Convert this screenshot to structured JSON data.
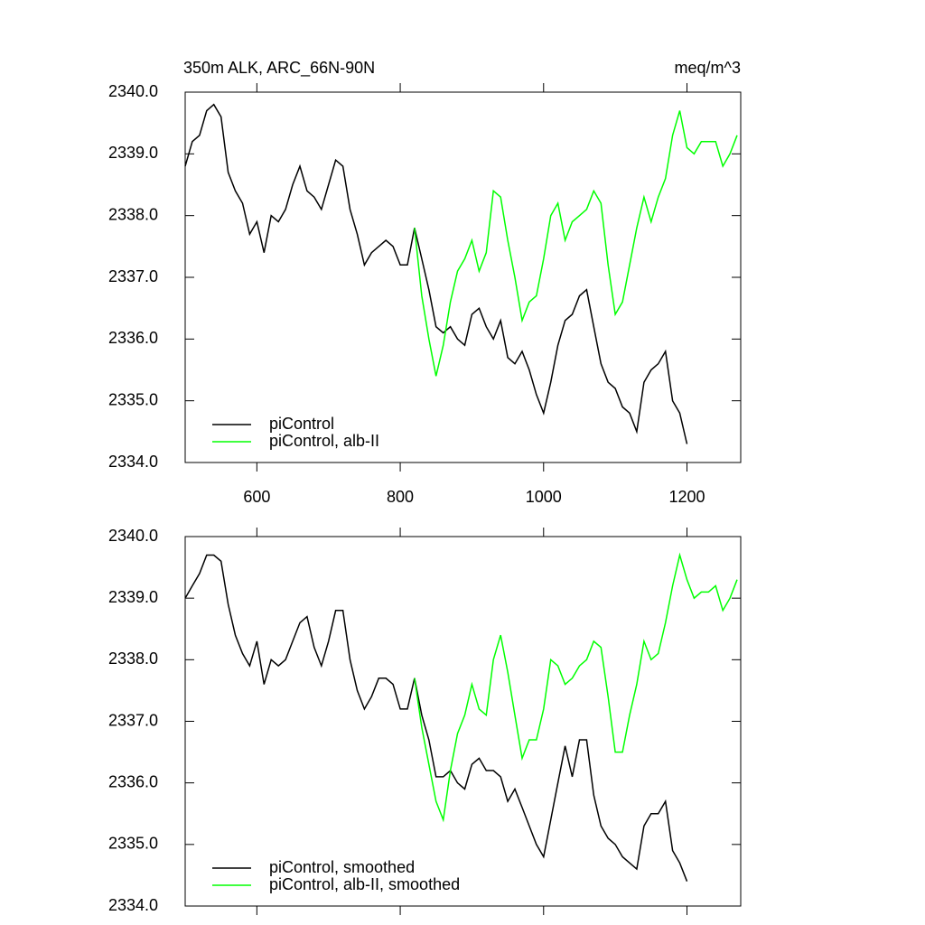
{
  "chart_data": [
    {
      "type": "line",
      "title": "350m ALK, ARC_66N-90N",
      "units": "meq/m^3",
      "x": [
        500,
        510,
        520,
        530,
        540,
        550,
        560,
        570,
        580,
        590,
        600,
        610,
        620,
        630,
        640,
        650,
        660,
        670,
        680,
        690,
        700,
        710,
        720,
        730,
        740,
        750,
        760,
        770,
        780,
        790,
        800,
        810,
        820,
        830,
        840,
        850,
        860,
        870,
        880,
        890,
        900,
        910,
        920,
        930,
        940,
        950,
        960,
        970,
        980,
        990,
        1000,
        1010,
        1020,
        1030,
        1040,
        1050,
        1060,
        1070,
        1080,
        1090,
        1100,
        1110,
        1120,
        1130,
        1140,
        1150,
        1160,
        1170,
        1180,
        1190,
        1200,
        1210,
        1220,
        1230,
        1240,
        1250,
        1260,
        1270
      ],
      "series": [
        {
          "name": "piControl",
          "color": "#000000",
          "values": [
            2338.8,
            2339.2,
            2339.3,
            2339.7,
            2339.8,
            2339.6,
            2338.7,
            2338.4,
            2338.2,
            2337.7,
            2337.9,
            2337.4,
            2338.0,
            2337.9,
            2338.1,
            2338.5,
            2338.8,
            2338.4,
            2338.3,
            2338.1,
            2338.5,
            2338.9,
            2338.8,
            2338.1,
            2337.7,
            2337.2,
            2337.4,
            2337.5,
            2337.6,
            2337.5,
            2337.2,
            2337.2,
            2337.8,
            2337.3,
            2336.8,
            2336.2,
            2336.1,
            2336.2,
            2336.0,
            2335.9,
            2336.4,
            2336.5,
            2336.2,
            2336.0,
            2336.3,
            2335.7,
            2335.6,
            2335.8,
            2335.5,
            2335.1,
            2334.8,
            2335.3,
            2335.9,
            2336.3,
            2336.4,
            2336.7,
            2336.8,
            2336.2,
            2335.6,
            2335.3,
            2335.2,
            2334.9,
            2334.8,
            2334.5,
            2335.3,
            2335.5,
            2335.6,
            2335.8,
            2335.0,
            2334.8,
            2334.3,
            null,
            null,
            null,
            null,
            null,
            null,
            null
          ]
        },
        {
          "name": "piControl, alb-II",
          "color": "#00ff00",
          "values": [
            null,
            null,
            null,
            null,
            null,
            null,
            null,
            null,
            null,
            null,
            null,
            null,
            null,
            null,
            null,
            null,
            null,
            null,
            null,
            null,
            null,
            null,
            null,
            null,
            null,
            null,
            null,
            null,
            null,
            null,
            null,
            null,
            2337.8,
            2336.7,
            2336.0,
            2335.4,
            2335.9,
            2336.6,
            2337.1,
            2337.3,
            2337.6,
            2337.1,
            2337.4,
            2338.4,
            2338.3,
            2337.6,
            2337.0,
            2336.3,
            2336.6,
            2336.7,
            2337.3,
            2338.0,
            2338.2,
            2337.6,
            2337.9,
            2338.0,
            2338.1,
            2338.4,
            2338.2,
            2337.2,
            2336.4,
            2336.6,
            2337.2,
            2337.8,
            2338.3,
            2337.9,
            2338.3,
            2338.6,
            2339.3,
            2339.7,
            2339.1,
            2339.0,
            2339.2,
            2339.2,
            2339.2,
            2338.8,
            2339.0,
            2339.3
          ]
        }
      ],
      "xlim": [
        500,
        1275
      ],
      "xticks": [
        600,
        800,
        1000,
        1200
      ],
      "ylim": [
        2334,
        2340
      ],
      "yticks": [
        {
          "value": 2334,
          "label": "2334.0"
        },
        {
          "value": 2335,
          "label": "2335.0"
        },
        {
          "value": 2336,
          "label": "2336.0"
        },
        {
          "value": 2337,
          "label": "2337.0"
        },
        {
          "value": 2338,
          "label": "2338.0"
        },
        {
          "value": 2339,
          "label": "2339.0"
        },
        {
          "value": 2340,
          "label": "2340.0"
        }
      ],
      "legend": "lower left"
    },
    {
      "type": "line",
      "x": [
        500,
        510,
        520,
        530,
        540,
        550,
        560,
        570,
        580,
        590,
        600,
        610,
        620,
        630,
        640,
        650,
        660,
        670,
        680,
        690,
        700,
        710,
        720,
        730,
        740,
        750,
        760,
        770,
        780,
        790,
        800,
        810,
        820,
        830,
        840,
        850,
        860,
        870,
        880,
        890,
        900,
        910,
        920,
        930,
        940,
        950,
        960,
        970,
        980,
        990,
        1000,
        1010,
        1020,
        1030,
        1040,
        1050,
        1060,
        1070,
        1080,
        1090,
        1100,
        1110,
        1120,
        1130,
        1140,
        1150,
        1160,
        1170,
        1180,
        1190,
        1200,
        1210,
        1220,
        1230,
        1240,
        1250,
        1260,
        1270
      ],
      "series": [
        {
          "name": "piControl, smoothed",
          "color": "#000000",
          "values": [
            2339.0,
            2339.2,
            2339.4,
            2339.7,
            2339.7,
            2339.6,
            2338.9,
            2338.4,
            2338.1,
            2337.9,
            2338.3,
            2337.6,
            2338.0,
            2337.9,
            2338.0,
            2338.3,
            2338.6,
            2338.7,
            2338.2,
            2337.9,
            2338.3,
            2338.8,
            2338.8,
            2338.0,
            2337.5,
            2337.2,
            2337.4,
            2337.7,
            2337.7,
            2337.6,
            2337.2,
            2337.2,
            2337.7,
            2337.1,
            2336.7,
            2336.1,
            2336.1,
            2336.2,
            2336.0,
            2335.9,
            2336.3,
            2336.4,
            2336.2,
            2336.2,
            2336.1,
            2335.7,
            2335.9,
            2335.6,
            2335.3,
            2335.0,
            2334.8,
            2335.4,
            2336.0,
            2336.6,
            2336.1,
            2336.7,
            2336.7,
            2335.8,
            2335.3,
            2335.1,
            2335.0,
            2334.8,
            2334.7,
            2334.6,
            2335.3,
            2335.5,
            2335.5,
            2335.7,
            2334.9,
            2334.7,
            2334.4,
            null,
            null,
            null,
            null,
            null,
            null,
            null
          ]
        },
        {
          "name": "piControl, alb-II, smoothed",
          "color": "#00ff00",
          "values": [
            null,
            null,
            null,
            null,
            null,
            null,
            null,
            null,
            null,
            null,
            null,
            null,
            null,
            null,
            null,
            null,
            null,
            null,
            null,
            null,
            null,
            null,
            null,
            null,
            null,
            null,
            null,
            null,
            null,
            null,
            null,
            null,
            2337.7,
            2336.9,
            2336.3,
            2335.7,
            2335.4,
            2336.2,
            2336.8,
            2337.1,
            2337.6,
            2337.2,
            2337.1,
            2338.0,
            2338.4,
            2337.8,
            2337.1,
            2336.4,
            2336.7,
            2336.7,
            2337.2,
            2338.0,
            2337.9,
            2337.6,
            2337.7,
            2337.9,
            2338.0,
            2338.3,
            2338.2,
            2337.4,
            2336.5,
            2336.5,
            2337.1,
            2337.6,
            2338.3,
            2338.0,
            2338.1,
            2338.6,
            2339.2,
            2339.7,
            2339.3,
            2339.0,
            2339.1,
            2339.1,
            2339.2,
            2338.8,
            2339.0,
            2339.3
          ]
        }
      ],
      "xlim": [
        500,
        1275
      ],
      "ylim": [
        2334,
        2340
      ],
      "yticks": [
        {
          "value": 2334,
          "label": "2334.0"
        },
        {
          "value": 2335,
          "label": "2335.0"
        },
        {
          "value": 2336,
          "label": "2336.0"
        },
        {
          "value": 2337,
          "label": "2337.0"
        },
        {
          "value": 2338,
          "label": "2338.0"
        },
        {
          "value": 2339,
          "label": "2339.0"
        },
        {
          "value": 2340,
          "label": "2340.0"
        }
      ],
      "legend": "lower left"
    }
  ]
}
